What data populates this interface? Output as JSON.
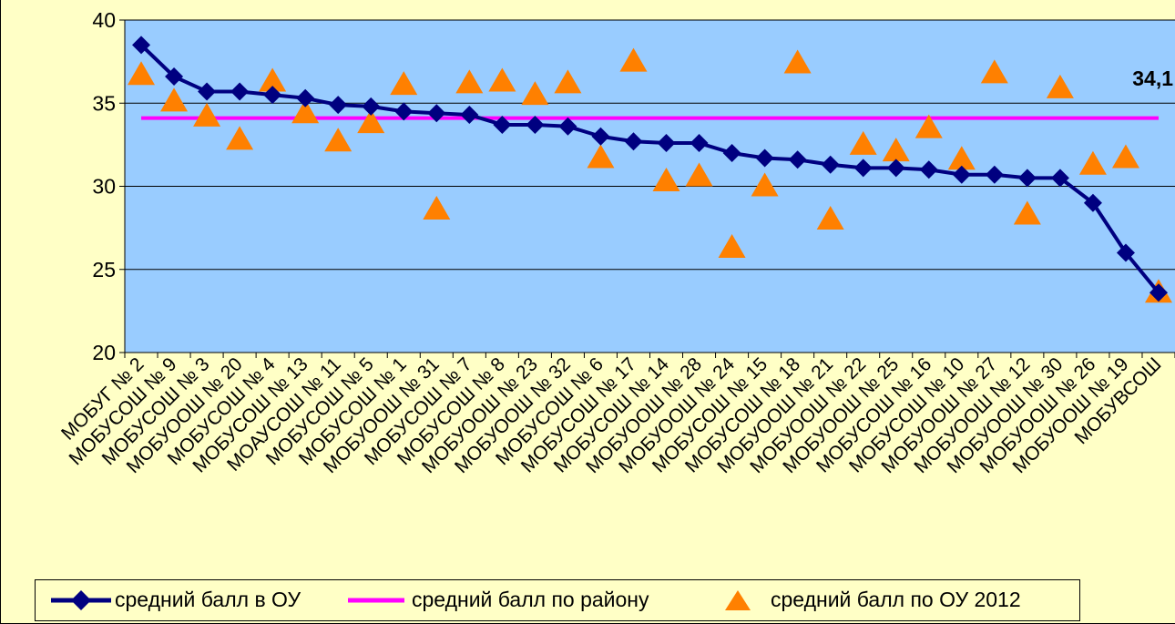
{
  "chart_data": {
    "type": "line",
    "categories": [
      "МОБУГ № 2",
      "МОБУСОШ № 9",
      "МОБУСОШ № 3",
      "МОБУООШ № 20",
      "МОБУСОШ № 4",
      "МОБУСОШ № 13",
      "МОАУСОШ № 11",
      "МОБУСОШ № 5",
      "МОБУСОШ № 1",
      "МОБУООШ № 31",
      "МОБУСОШ № 7",
      "МОБУСОШ № 8",
      "МОБУООШ № 23",
      "МОБУООШ № 32",
      "МОБУСОШ № 6",
      "МОБУСОШ № 17",
      "МОБУСОШ № 14",
      "МОБУООШ № 28",
      "МОБУООШ № 24",
      "МОБУСОШ № 15",
      "МОБУСОШ № 18",
      "МОБУООШ № 21",
      "МОБУООШ № 22",
      "МОБУООШ № 25",
      "МОБУСОШ № 16",
      "МОБУСОШ № 10",
      "МОБУООШ № 27",
      "МОБУООШ № 12",
      "МОБУООШ № 30",
      "МОБУООШ № 26",
      "МОБУООШ № 19",
      "МОБУВСОШ"
    ],
    "series": [
      {
        "name": "средний балл в ОУ",
        "type": "line",
        "color": "#000080",
        "values": [
          38.5,
          36.6,
          35.7,
          35.7,
          35.5,
          35.3,
          34.9,
          34.8,
          34.5,
          34.4,
          34.3,
          33.7,
          33.7,
          33.6,
          33.0,
          32.7,
          32.6,
          32.6,
          32.0,
          31.7,
          31.6,
          31.3,
          31.1,
          31.1,
          31.0,
          30.7,
          30.7,
          30.5,
          30.5,
          29.0,
          26.0,
          23.6
        ]
      },
      {
        "name": "средний балл по району",
        "type": "line",
        "color": "#ff00ff",
        "values": [
          34.1,
          34.1,
          34.1,
          34.1,
          34.1,
          34.1,
          34.1,
          34.1,
          34.1,
          34.1,
          34.1,
          34.1,
          34.1,
          34.1,
          34.1,
          34.1,
          34.1,
          34.1,
          34.1,
          34.1,
          34.1,
          34.1,
          34.1,
          34.1,
          34.1,
          34.1,
          34.1,
          34.1,
          34.1,
          34.1,
          34.1,
          34.1
        ]
      },
      {
        "name": "средний балл по ОУ  2012",
        "type": "scatter",
        "color": "#ff8000",
        "values": [
          36.7,
          35.1,
          34.2,
          32.8,
          36.3,
          34.4,
          32.7,
          33.8,
          36.1,
          28.6,
          36.2,
          36.3,
          35.5,
          36.2,
          31.7,
          37.5,
          30.3,
          30.6,
          26.3,
          30.0,
          37.4,
          28.0,
          32.5,
          32.1,
          33.5,
          31.6,
          36.8,
          28.3,
          35.9,
          31.3,
          31.7,
          23.6
        ]
      }
    ],
    "annotation": "34,1",
    "ylim": [
      20,
      40
    ],
    "yticks": [
      "20",
      "25",
      "30",
      "35",
      "40"
    ],
    "grid": true,
    "legend_position": "bottom",
    "colors": {
      "plot_bg": "#99ccff",
      "page_bg": "#ffffc6"
    }
  }
}
